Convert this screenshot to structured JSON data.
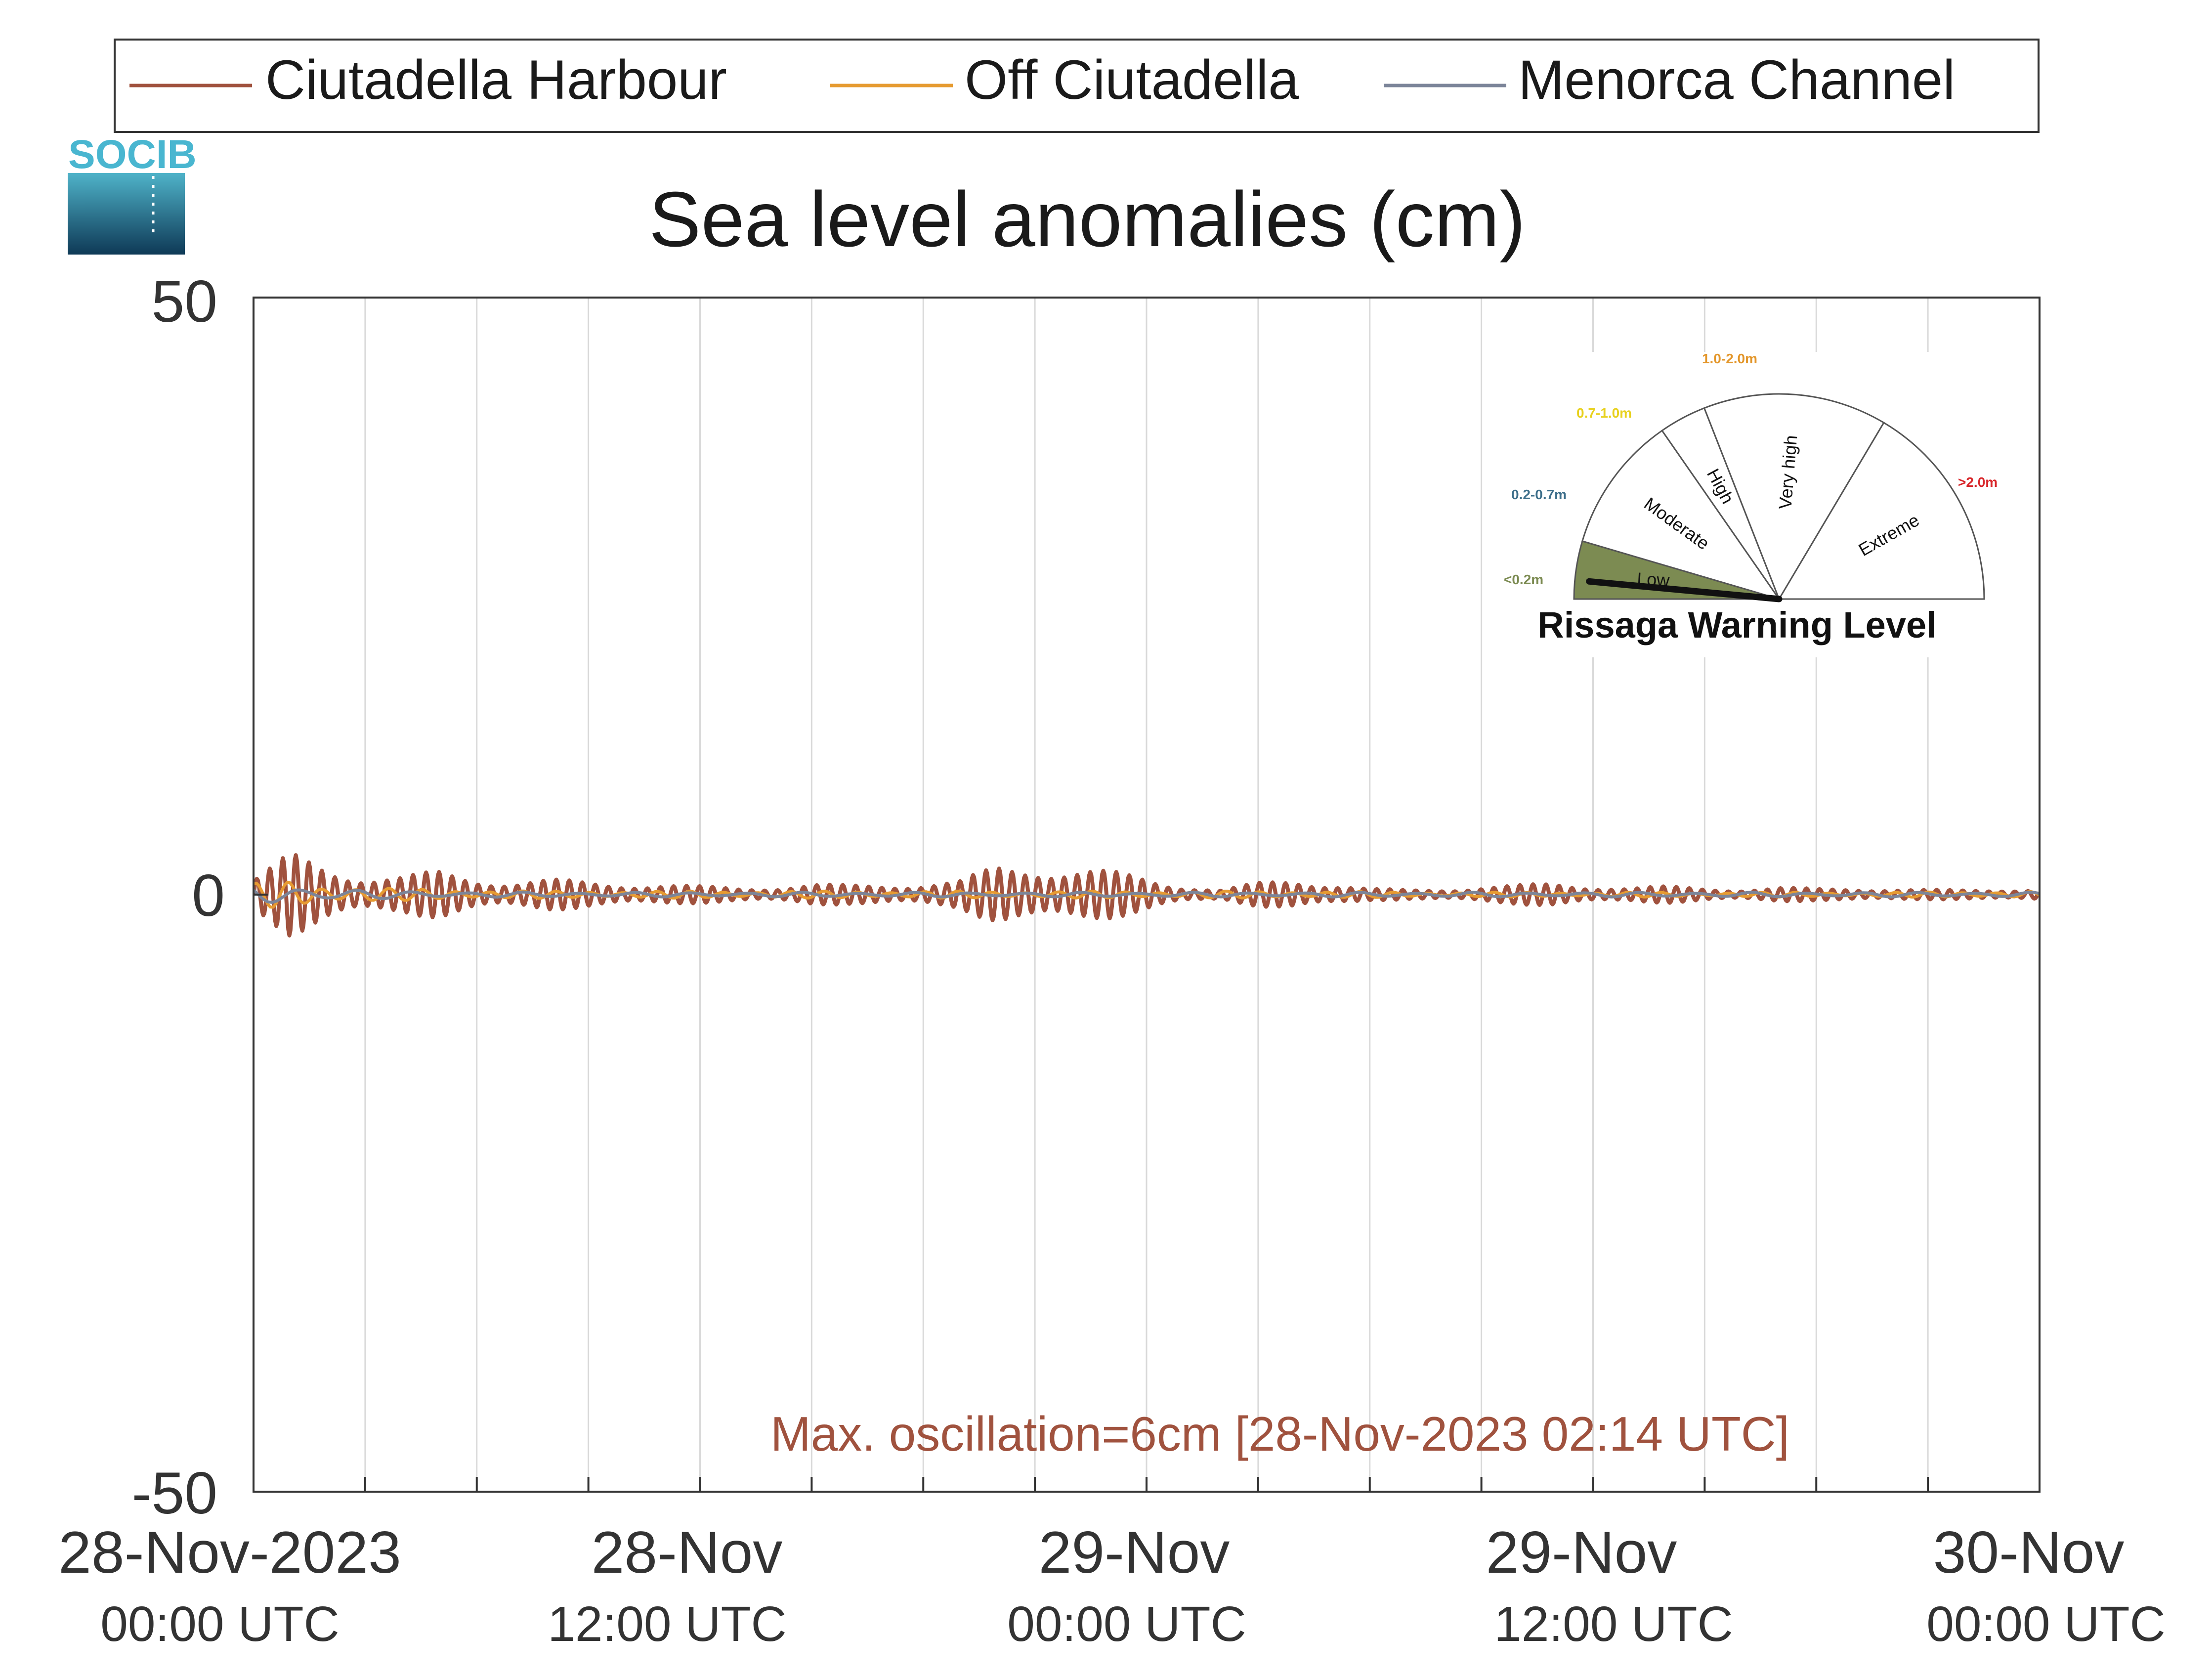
{
  "brand": {
    "logo_text": "SOCIB",
    "logo_colors": {
      "text": "#49b6d0",
      "top": "#4fb3c9",
      "bottom": "#0e3956"
    }
  },
  "legend": {
    "position": "top",
    "items": [
      {
        "label": "Ciutadella Harbour",
        "color": "#a0523e"
      },
      {
        "label": "Off Ciutadella",
        "color": "#e69b32"
      },
      {
        "label": "Menorca Channel",
        "color": "#7c8599"
      }
    ]
  },
  "chart_data": {
    "type": "line",
    "title": "Sea level anomalies (cm)",
    "xlabel": "",
    "ylabel": "",
    "ylim": [
      -50,
      50
    ],
    "yticks": [
      "50",
      "0",
      "-50"
    ],
    "xlim_hours": [
      0,
      48
    ],
    "x_unit": "hours since 28-Nov-2023 00:00 UTC",
    "grid": {
      "x": true,
      "y": false,
      "x_step_hours": 3
    },
    "xticks": [
      {
        "date": "28-Nov-2023",
        "time": "00:00 UTC"
      },
      {
        "date": "28-Nov",
        "time": "12:00 UTC"
      },
      {
        "date": "29-Nov",
        "time": "00:00 UTC"
      },
      {
        "date": "29-Nov",
        "time": "12:00 UTC"
      },
      {
        "date": "30-Nov",
        "time": "00:00 UTC"
      }
    ],
    "series": [
      {
        "name": "Ciutadella Harbour",
        "color": "#a0523e",
        "envelope_x": [
          0,
          0.5,
          1,
          1.5,
          2,
          3,
          4,
          5,
          6,
          7,
          8,
          9,
          10,
          11,
          12,
          13,
          14,
          15,
          16,
          17,
          18,
          19,
          20,
          21,
          22,
          23,
          24,
          25,
          26,
          27,
          28,
          29,
          30,
          31,
          32,
          33,
          34,
          35,
          36,
          37,
          38,
          39,
          40,
          41,
          42,
          43,
          44,
          45,
          46,
          47,
          48
        ],
        "envelope_amplitude_cm": [
          1.5,
          2.5,
          3.5,
          3.0,
          2.5,
          1.8,
          1.6,
          2.0,
          1.5,
          1.2,
          1.3,
          1.1,
          1.0,
          0.9,
          0.7,
          0.6,
          0.7,
          0.9,
          0.8,
          0.9,
          1.0,
          1.2,
          2.5,
          2.8,
          2.3,
          2.0,
          1.5,
          0.8,
          0.4,
          1.0,
          1.4,
          1.0,
          0.5,
          0.4,
          0.5,
          0.7,
          0.8,
          1.0,
          0.8,
          0.6,
          0.7,
          0.6,
          0.5,
          0.6,
          0.5,
          0.6,
          0.5,
          0.4,
          0.4,
          0.5,
          0.5
        ],
        "period_hours": 0.35,
        "max_oscillation_cm": 6
      },
      {
        "name": "Off Ciutadella",
        "color": "#e69b32",
        "envelope_x": [
          0,
          1,
          2,
          4,
          8,
          12,
          16,
          20,
          24,
          28,
          32,
          36,
          40,
          44,
          48
        ],
        "envelope_amplitude_cm": [
          1.0,
          1.2,
          0.8,
          0.5,
          0.3,
          0.3,
          0.3,
          0.3,
          0.3,
          0.3,
          0.2,
          0.2,
          0.2,
          0.2,
          0.3
        ],
        "period_hours": 0.9
      },
      {
        "name": "Menorca Channel",
        "color": "#7c8599",
        "envelope_x": [
          0,
          1,
          2,
          4,
          8,
          12,
          16,
          20,
          24,
          28,
          32,
          36,
          40,
          44,
          48
        ],
        "envelope_amplitude_cm": [
          0.8,
          0.8,
          0.5,
          0.3,
          0.2,
          0.2,
          0.2,
          0.2,
          0.2,
          0.2,
          0.2,
          0.2,
          0.2,
          0.2,
          0.2
        ],
        "period_hours": 1.5
      }
    ],
    "annotation": {
      "text": "Max. oscillation=6cm [28-Nov-2023 02:14 UTC]",
      "color": "#a0523e"
    }
  },
  "gauge": {
    "title": "Rissaga Warning Level",
    "current_level": "Low",
    "needle_value_m": 0.05,
    "sectors": [
      {
        "label": "Low",
        "range": "<0.2m",
        "color": "#7c8b52",
        "range_color": "#7c8b52",
        "active": true
      },
      {
        "label": "Moderate",
        "range": "0.2-0.7m",
        "color": "#ffffff",
        "range_color": "#3c6e8a",
        "active": false
      },
      {
        "label": "High",
        "range": "0.7-1.0m",
        "color": "#ffffff",
        "range_color": "#e8d11e",
        "active": false
      },
      {
        "label": "Very high",
        "range": "1.0-2.0m",
        "color": "#ffffff",
        "range_color": "#e3962a",
        "active": false
      },
      {
        "label": "Extreme",
        "range": ">2.0m",
        "color": "#ffffff",
        "range_color": "#d8262a",
        "active": false
      }
    ]
  }
}
